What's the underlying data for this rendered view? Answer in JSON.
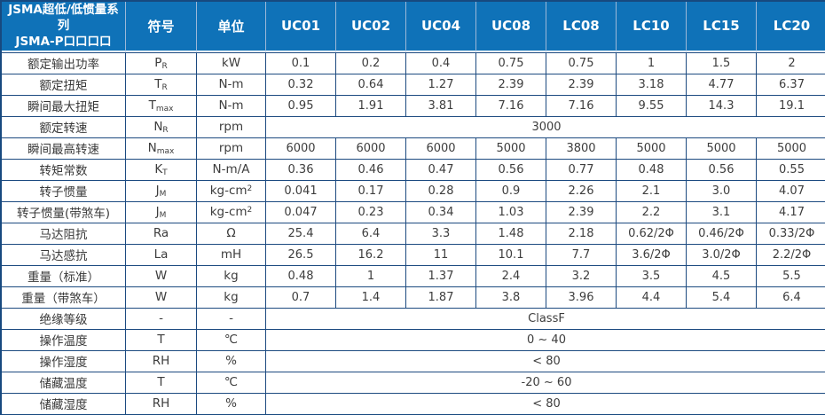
{
  "table": {
    "title_line1": "JSMA超低/低惯量系列",
    "title_line2": "JSMA-P口口口口",
    "header": {
      "symbol": "符号",
      "unit": "单位",
      "models": [
        "UC01",
        "UC02",
        "UC04",
        "UC08",
        "LC08",
        "LC10",
        "LC15",
        "LC20"
      ]
    },
    "rows": [
      {
        "label": "额定输出功率",
        "symbol": "P",
        "symbol_sub": "R",
        "unit": "kW",
        "unit_sup": "",
        "values": [
          "0.1",
          "0.2",
          "0.4",
          "0.75",
          "0.75",
          "1",
          "1.5",
          "2"
        ]
      },
      {
        "label": "额定扭矩",
        "symbol": "T",
        "symbol_sub": "R",
        "unit": "N-m",
        "unit_sup": "",
        "values": [
          "0.32",
          "0.64",
          "1.27",
          "2.39",
          "2.39",
          "3.18",
          "4.77",
          "6.37"
        ]
      },
      {
        "label": "瞬间最大扭矩",
        "symbol": "T",
        "symbol_sub": "max",
        "unit": "N-m",
        "unit_sup": "",
        "values": [
          "0.95",
          "1.91",
          "3.81",
          "7.16",
          "7.16",
          "9.55",
          "14.3",
          "19.1"
        ]
      },
      {
        "label": "额定转速",
        "symbol": "N",
        "symbol_sub": "R",
        "unit": "rpm",
        "unit_sup": "",
        "merged": "3000"
      },
      {
        "label": "瞬间最高转速",
        "symbol": "N",
        "symbol_sub": "max",
        "unit": "rpm",
        "unit_sup": "",
        "values": [
          "6000",
          "6000",
          "6000",
          "5000",
          "3800",
          "5000",
          "5000",
          "5000"
        ]
      },
      {
        "label": "转矩常数",
        "symbol": "K",
        "symbol_sub": "T",
        "unit": "N-m/A",
        "unit_sup": "",
        "values": [
          "0.36",
          "0.46",
          "0.47",
          "0.56",
          "0.77",
          "0.48",
          "0.56",
          "0.55"
        ]
      },
      {
        "label": "转子惯量",
        "symbol": "J",
        "symbol_sub": "M",
        "unit": "kg-cm",
        "unit_sup": "2",
        "values": [
          "0.041",
          "0.17",
          "0.28",
          "0.9",
          "2.26",
          "2.1",
          "3.0",
          "4.07"
        ]
      },
      {
        "label": "转子惯量(带煞车)",
        "symbol": "J",
        "symbol_sub": "M",
        "unit": "kg-cm",
        "unit_sup": "2",
        "values": [
          "0.047",
          "0.23",
          "0.34",
          "1.03",
          "2.39",
          "2.2",
          "3.1",
          "4.17"
        ]
      },
      {
        "label": "马达阻抗",
        "symbol": "Ra",
        "symbol_sub": "",
        "unit": "Ω",
        "unit_sup": "",
        "values": [
          "25.4",
          "6.4",
          "3.3",
          "1.48",
          "2.18",
          "0.62/2Φ",
          "0.46/2Φ",
          "0.33/2Φ"
        ]
      },
      {
        "label": "马达感抗",
        "symbol": "La",
        "symbol_sub": "",
        "unit": "mH",
        "unit_sup": "",
        "values": [
          "26.5",
          "16.2",
          "11",
          "10.1",
          "7.7",
          "3.6/2Φ",
          "3.0/2Φ",
          "2.2/2Φ"
        ]
      },
      {
        "label": "重量（标准）",
        "symbol": "W",
        "symbol_sub": "",
        "unit": "kg",
        "unit_sup": "",
        "values": [
          "0.48",
          "1",
          "1.37",
          "2.4",
          "3.2",
          "3.5",
          "4.5",
          "5.5"
        ]
      },
      {
        "label": "重量（带煞车）",
        "symbol": "W",
        "symbol_sub": "",
        "unit": "kg",
        "unit_sup": "",
        "values": [
          "0.7",
          "1.4",
          "1.87",
          "3.8",
          "3.96",
          "4.4",
          "5.4",
          "6.4"
        ]
      },
      {
        "label": "绝缘等级",
        "symbol": "-",
        "symbol_sub": "",
        "unit": "-",
        "unit_sup": "",
        "merged": "ClassF"
      },
      {
        "label": "操作温度",
        "symbol": "T",
        "symbol_sub": "",
        "unit": "℃",
        "unit_sup": "",
        "merged": "0 ~ 40"
      },
      {
        "label": "操作湿度",
        "symbol": "RH",
        "symbol_sub": "",
        "unit": "%",
        "unit_sup": "",
        "merged": "< 80"
      },
      {
        "label": "储藏温度",
        "symbol": "T",
        "symbol_sub": "",
        "unit": "℃",
        "unit_sup": "",
        "merged": "-20 ~ 60"
      },
      {
        "label": "储藏湿度",
        "symbol": "RH",
        "symbol_sub": "",
        "unit": "%",
        "unit_sup": "",
        "merged": "< 80"
      }
    ],
    "colors": {
      "header_blue": "#0F72B8",
      "grid_navy": "#1C4A80",
      "outer_frame_navy": "#17497F",
      "header_divider": "#9CB8D8",
      "body_text": "#3D3D3D",
      "header_text": "#FFFFFF"
    }
  }
}
